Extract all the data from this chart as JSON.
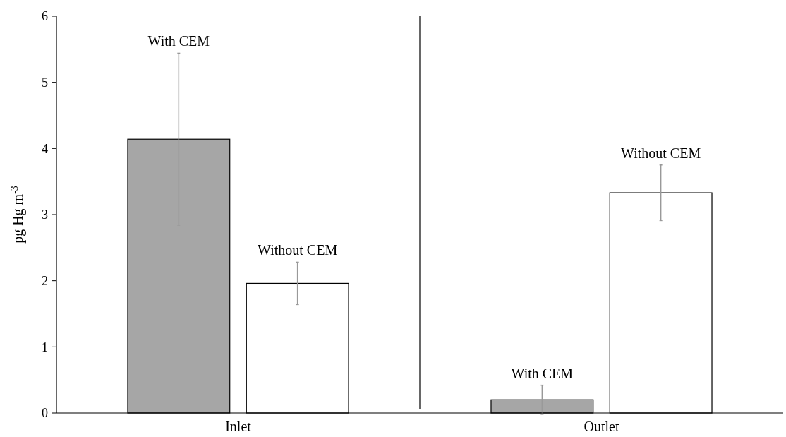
{
  "chart_data": {
    "type": "bar",
    "ylabel": "pg Hg m$^{-3}$",
    "categories": [
      "Inlet",
      "Outlet"
    ],
    "series": [
      {
        "name": "With CEM",
        "color": "#a6a6a6",
        "values": [
          4.14,
          0.2
        ],
        "errors": [
          1.3,
          0.22
        ]
      },
      {
        "name": "Without CEM",
        "color": "#ffffff",
        "values": [
          1.96,
          3.33
        ],
        "errors": [
          0.32,
          0.42
        ]
      }
    ],
    "ylim": [
      0,
      6
    ],
    "yticks": [
      0,
      1,
      2,
      3,
      4,
      5,
      6
    ],
    "grid": false
  }
}
